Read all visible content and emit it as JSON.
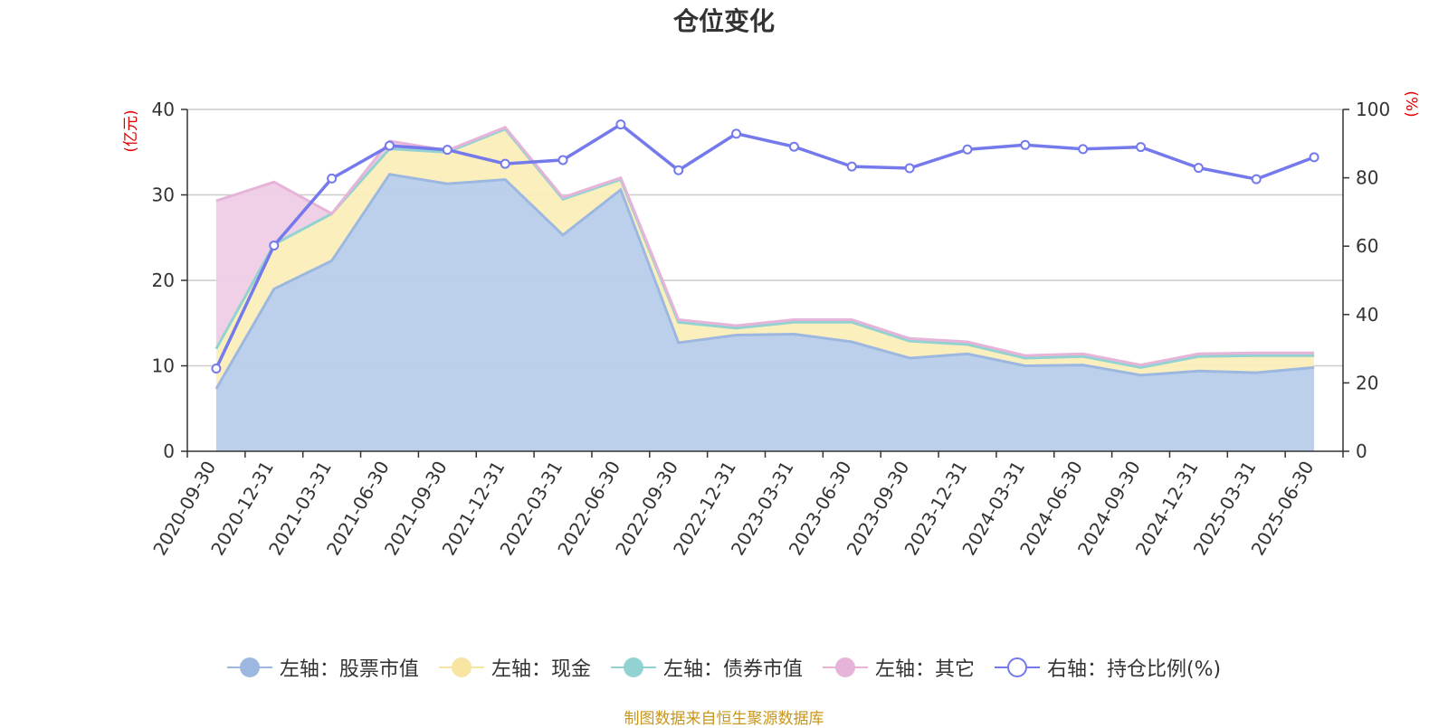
{
  "chart_data": {
    "type": "area",
    "title": "仓位变化",
    "left_axis_unit": "(亿元)",
    "right_axis_unit": "(%)",
    "left_ylim": [
      0,
      40
    ],
    "left_yticks": [
      "0",
      "10",
      "20",
      "30",
      "40"
    ],
    "right_ylim": [
      0,
      100
    ],
    "right_yticks": [
      "0",
      "20",
      "40",
      "60",
      "80",
      "100"
    ],
    "categories": [
      "2020-09-30",
      "2020-12-31",
      "2021-03-31",
      "2021-06-30",
      "2021-09-30",
      "2021-12-31",
      "2022-03-31",
      "2022-06-30",
      "2022-09-30",
      "2022-12-31",
      "2023-03-31",
      "2023-06-30",
      "2023-09-30",
      "2023-12-31",
      "2024-03-31",
      "2024-06-30",
      "2024-09-30",
      "2024-12-31",
      "2025-03-31",
      "2025-06-30"
    ],
    "series": [
      {
        "name": "左轴：股票市值",
        "axis": "left",
        "stacked": true,
        "color": "#9db8e0",
        "fill": "#b8cdea",
        "values": [
          7.3,
          19.0,
          22.3,
          32.4,
          31.3,
          31.8,
          25.3,
          30.6,
          12.7,
          13.6,
          13.7,
          12.8,
          10.9,
          11.4,
          10.0,
          10.1,
          8.9,
          9.4,
          9.2,
          9.8
        ]
      },
      {
        "name": "左轴：现金",
        "axis": "left",
        "stacked": true,
        "color": "#f7e5a1",
        "fill": "#fbeebb",
        "values": [
          4.7,
          5.2,
          5.5,
          3.0,
          3.7,
          5.9,
          4.2,
          1.2,
          2.4,
          0.8,
          1.4,
          2.3,
          2.0,
          1.1,
          0.9,
          1.0,
          0.9,
          1.7,
          2.0,
          1.4
        ]
      },
      {
        "name": "左轴：债券市值",
        "axis": "left",
        "stacked": true,
        "color": "#93d2d2",
        "fill": "#a8dcdc",
        "values": [
          0,
          0,
          0,
          0,
          0,
          0,
          0,
          0,
          0,
          0,
          0,
          0,
          0,
          0,
          0,
          0,
          0,
          0,
          0,
          0
        ]
      },
      {
        "name": "左轴：其它",
        "axis": "left",
        "stacked": true,
        "color": "#e6b4d8",
        "fill": "#efcde6",
        "values": [
          17.3,
          7.3,
          0,
          0.9,
          0.2,
          0.2,
          0.2,
          0.2,
          0.3,
          0.3,
          0.3,
          0.3,
          0.3,
          0.3,
          0.3,
          0.3,
          0.3,
          0.3,
          0.3,
          0.3
        ]
      },
      {
        "name": "右轴：持仓比例(%)",
        "axis": "right",
        "stacked": false,
        "color": "#7479ec",
        "values": [
          24.2,
          60.2,
          79.8,
          89.4,
          88.2,
          84.1,
          85.2,
          95.6,
          82.2,
          92.9,
          89.1,
          83.3,
          82.8,
          88.3,
          89.6,
          88.4,
          89.0,
          82.9,
          79.6,
          86.0
        ]
      }
    ],
    "legend_position": "bottom",
    "grid": true
  },
  "source_text": "制图数据来自恒生聚源数据库"
}
